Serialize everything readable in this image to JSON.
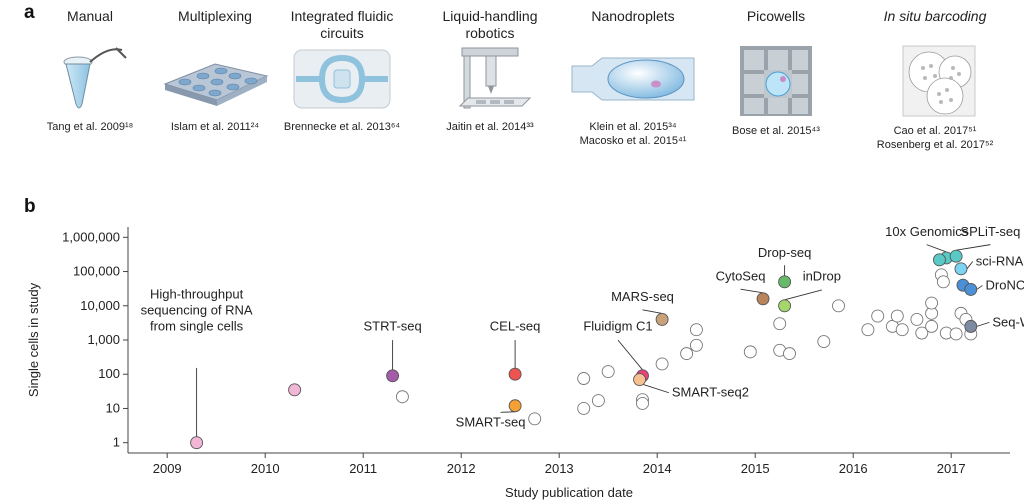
{
  "panel_a": {
    "letter": "a",
    "methods": [
      {
        "title": "Manual",
        "title_italic": false,
        "citations": [
          "Tang et al. 2009¹⁸"
        ],
        "icon": "manual-tube-icon"
      },
      {
        "title": "Multiplexing",
        "title_italic": false,
        "citations": [
          "Islam et al. 2011²⁴"
        ],
        "icon": "multiplexing-plate-icon"
      },
      {
        "title": "Integrated fluidic circuits",
        "title_italic": false,
        "citations": [
          "Brennecke et al. 2013⁶⁴"
        ],
        "icon": "fluidic-circuit-icon"
      },
      {
        "title": "Liquid-handling robotics",
        "title_italic": false,
        "citations": [
          "Jaitin et al. 2014³³"
        ],
        "icon": "robotics-icon"
      },
      {
        "title": "Nanodroplets",
        "title_italic": false,
        "citations": [
          "Klein et al. 2015³⁴",
          "Macosko et al. 2015⁴¹"
        ],
        "icon": "nanodroplet-icon"
      },
      {
        "title": "Picowells",
        "title_italic": false,
        "citations": [
          "Bose et al. 2015⁴³"
        ],
        "icon": "picowell-icon"
      },
      {
        "title": "In situ barcoding",
        "title_italic": true,
        "citations": [
          "Cao et al. 2017⁵¹",
          "Rosenberg et al. 2017⁵²"
        ],
        "icon": "barcoding-cells-icon"
      }
    ]
  },
  "panel_b_letter": "b",
  "chart_data": {
    "type": "scatter",
    "xlabel": "Study publication date",
    "ylabel": "Single cells in study",
    "xlim": [
      2008.6,
      2017.6
    ],
    "ylim": [
      0.5,
      2000000
    ],
    "yscale": "log",
    "x_ticks": [
      2009,
      2010,
      2011,
      2012,
      2013,
      2014,
      2015,
      2016,
      2017
    ],
    "y_ticks": [
      {
        "value": 1,
        "label": "1"
      },
      {
        "value": 10,
        "label": "10"
      },
      {
        "value": 100,
        "label": "100"
      },
      {
        "value": 1000,
        "label": "1,000"
      },
      {
        "value": 10000,
        "label": "10,000"
      },
      {
        "value": 100000,
        "label": "100,000"
      },
      {
        "value": 1000000,
        "label": "1,000,000"
      }
    ],
    "highlighted": [
      {
        "label": "High-throughput\nsequencing of RNA\nfrom single cells",
        "x": 2009.3,
        "y": 1,
        "color": "#f2b6d6"
      },
      {
        "label": "",
        "x": 2010.3,
        "y": 35,
        "color": "#f2b6d6"
      },
      {
        "label": "STRT-seq",
        "x": 2011.3,
        "y": 90,
        "color": "#a45ba8"
      },
      {
        "label": "CEL-seq",
        "x": 2012.55,
        "y": 100,
        "color": "#ef5350"
      },
      {
        "label": "SMART-seq",
        "x": 2012.55,
        "y": 12,
        "color": "#f5a034"
      },
      {
        "label": "MARS-seq",
        "x": 2014.05,
        "y": 4000,
        "color": "#c9a27a"
      },
      {
        "label": "Fluidigm C1",
        "x": 2013.85,
        "y": 90,
        "color": "#ec407a"
      },
      {
        "label": "SMART-seq2",
        "x": 2013.82,
        "y": 70,
        "color": "#f6c090"
      },
      {
        "label": "CytoSeq",
        "x": 2015.08,
        "y": 16000,
        "color": "#b8845a"
      },
      {
        "label": "Drop-seq",
        "x": 2015.3,
        "y": 50000,
        "color": "#66bb6a"
      },
      {
        "label": "inDrop",
        "x": 2015.3,
        "y": 10000,
        "color": "#a5d66b"
      },
      {
        "label": "10x Genomics",
        "x": 2016.95,
        "y": 250000,
        "color": "#58c9c4"
      },
      {
        "label": "",
        "x": 2016.88,
        "y": 220000,
        "color": "#58c9c4"
      },
      {
        "label": "SPLiT-seq",
        "x": 2017.05,
        "y": 280000,
        "color": "#58c9c4"
      },
      {
        "label": "sci-RNA-seq",
        "x": 2017.1,
        "y": 120000,
        "color": "#7dd3f2"
      },
      {
        "label": "",
        "x": 2017.12,
        "y": 40000,
        "color": "#4b8fd6"
      },
      {
        "label": "DroNC-seq",
        "x": 2017.2,
        "y": 30000,
        "color": "#4b8fd6"
      },
      {
        "label": "Seq-Well",
        "x": 2017.2,
        "y": 2500,
        "color": "#7c8ba1"
      }
    ],
    "other_studies": [
      {
        "x": 2011.4,
        "y": 22
      },
      {
        "x": 2012.75,
        "y": 5
      },
      {
        "x": 2013.25,
        "y": 10
      },
      {
        "x": 2013.25,
        "y": 75
      },
      {
        "x": 2013.4,
        "y": 17
      },
      {
        "x": 2013.5,
        "y": 120
      },
      {
        "x": 2013.85,
        "y": 18
      },
      {
        "x": 2013.85,
        "y": 14
      },
      {
        "x": 2014.05,
        "y": 200
      },
      {
        "x": 2014.3,
        "y": 400
      },
      {
        "x": 2014.4,
        "y": 700
      },
      {
        "x": 2014.4,
        "y": 2000
      },
      {
        "x": 2014.95,
        "y": 450
      },
      {
        "x": 2015.25,
        "y": 3000
      },
      {
        "x": 2015.25,
        "y": 500
      },
      {
        "x": 2015.35,
        "y": 400
      },
      {
        "x": 2015.7,
        "y": 900
      },
      {
        "x": 2015.85,
        "y": 10000
      },
      {
        "x": 2016.15,
        "y": 2000
      },
      {
        "x": 2016.25,
        "y": 5000
      },
      {
        "x": 2016.4,
        "y": 2500
      },
      {
        "x": 2016.45,
        "y": 5000
      },
      {
        "x": 2016.5,
        "y": 2000
      },
      {
        "x": 2016.65,
        "y": 4000
      },
      {
        "x": 2016.7,
        "y": 1600
      },
      {
        "x": 2016.8,
        "y": 6000
      },
      {
        "x": 2016.8,
        "y": 12000
      },
      {
        "x": 2016.8,
        "y": 2500
      },
      {
        "x": 2016.95,
        "y": 1600
      },
      {
        "x": 2016.9,
        "y": 80000
      },
      {
        "x": 2016.92,
        "y": 50000
      },
      {
        "x": 2017.05,
        "y": 1500
      },
      {
        "x": 2017.1,
        "y": 6000
      },
      {
        "x": 2017.15,
        "y": 4000
      },
      {
        "x": 2017.2,
        "y": 1500
      }
    ]
  }
}
